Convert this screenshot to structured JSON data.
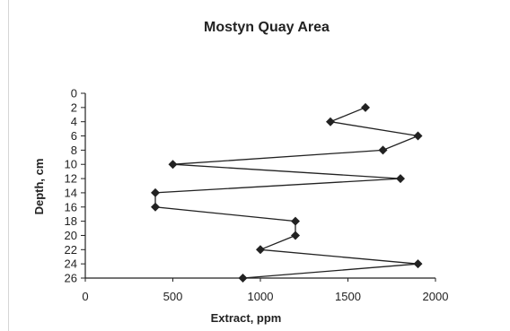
{
  "chart_data": {
    "type": "line",
    "title": "Mostyn Quay Area",
    "xlabel": "Extract, ppm",
    "ylabel": "Depth, cm",
    "xlim": [
      0,
      2000
    ],
    "ylim": [
      0,
      26
    ],
    "y_inverted": true,
    "xticks": [
      0,
      500,
      1000,
      1500,
      2000
    ],
    "yticks": [
      0,
      2,
      4,
      6,
      8,
      10,
      12,
      14,
      16,
      18,
      20,
      22,
      24,
      26
    ],
    "grid": false,
    "legend": "none",
    "marker": "diamond",
    "line_color": "#222222",
    "series": [
      {
        "x": [
          1600,
          1400,
          1900,
          1700,
          500,
          1800,
          400,
          400,
          1200,
          1200,
          1000,
          1900,
          900
        ],
        "y": [
          2,
          4,
          6,
          8,
          10,
          12,
          14,
          16,
          18,
          20,
          22,
          24,
          26
        ]
      }
    ]
  }
}
